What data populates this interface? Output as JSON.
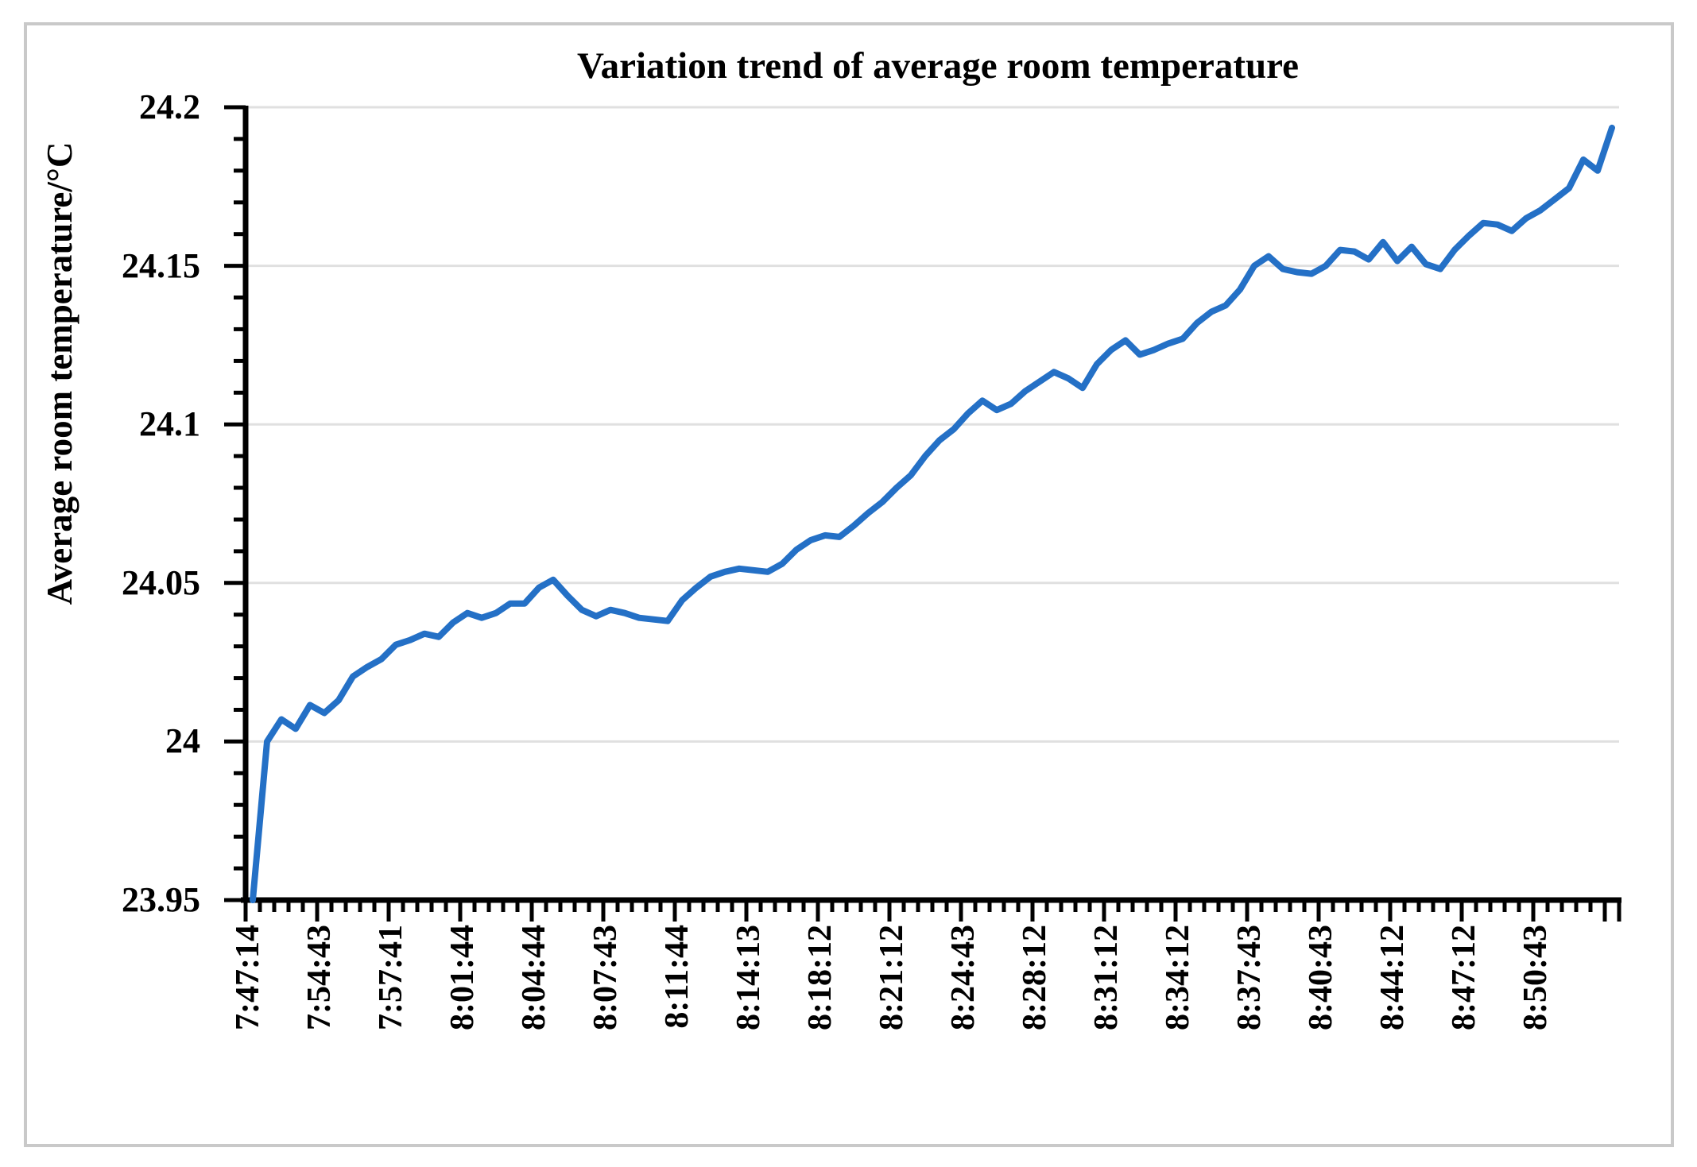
{
  "figure": {
    "background": "#ffffff",
    "border_color": "#c9c9c9"
  },
  "chart_data": {
    "type": "line",
    "title": "Variation trend of average room temperature",
    "ylabel": "Average room temperature/°C",
    "xlabel": "",
    "legend": "none",
    "grid": "horizontal-major",
    "series_color": "#2470c6",
    "gridline_color": "#e0e0e0",
    "axis_color": "#000000",
    "text_color": "#000000",
    "ylim": [
      23.95,
      24.2
    ],
    "y_major_step": 0.05,
    "y_minor_step": 0.01,
    "y_tick_labels": [
      "23.95",
      "24",
      "24.05",
      "24.1",
      "24.15",
      "24.2"
    ],
    "x_tick_labels": [
      "7:47:14",
      "7:54:43",
      "7:57:41",
      "8:01:44",
      "8:04:44",
      "8:07:43",
      "8:11:44",
      "8:14:13",
      "8:18:12",
      "8:21:12",
      "8:24:43",
      "8:28:12",
      "8:31:12",
      "8:34:12",
      "8:37:43",
      "8:40:43",
      "8:44:12",
      "8:47:12",
      "8:50:43"
    ],
    "label_interval": 5,
    "values": [
      23.95,
      24.0,
      24.007,
      24.004,
      24.0115,
      24.009,
      24.013,
      24.0205,
      24.0235,
      24.026,
      24.0305,
      24.032,
      24.034,
      24.033,
      24.0375,
      24.0405,
      24.039,
      24.0405,
      24.0435,
      24.0435,
      24.0485,
      24.051,
      24.046,
      24.0415,
      24.0395,
      24.0415,
      24.0405,
      24.039,
      24.0385,
      24.038,
      24.0445,
      24.0485,
      24.052,
      24.0535,
      24.0545,
      24.054,
      24.0535,
      24.056,
      24.0605,
      24.0635,
      24.065,
      24.0645,
      24.068,
      24.072,
      24.0755,
      24.08,
      24.084,
      24.09,
      24.095,
      24.0985,
      24.1035,
      24.1075,
      24.1045,
      24.1065,
      24.1105,
      24.1135,
      24.1165,
      24.1145,
      24.1115,
      24.119,
      24.1235,
      24.1265,
      24.122,
      24.1235,
      24.1255,
      24.127,
      24.132,
      24.1355,
      24.1375,
      24.1425,
      24.15,
      24.153,
      24.149,
      24.148,
      24.1475,
      24.15,
      24.155,
      24.1545,
      24.152,
      24.1575,
      24.1515,
      24.156,
      24.1505,
      24.149,
      24.155,
      24.1595,
      24.1635,
      24.163,
      24.161,
      24.165,
      24.1675,
      24.171,
      24.1745,
      24.1835,
      24.18,
      24.1935
    ]
  }
}
